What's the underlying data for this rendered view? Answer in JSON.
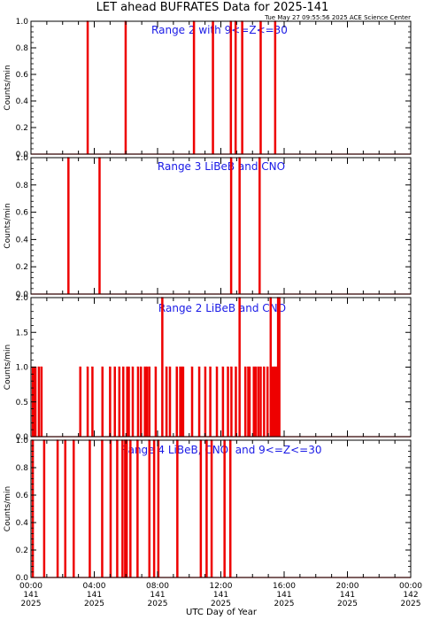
{
  "figure": {
    "title": "LET ahead BUFRATES Data for 2025-141",
    "timestamp": "Tue May 27 09:55:56 2025 ACE Science Center",
    "xlabel": "UTC Day of Year",
    "colors": {
      "line": "#ee0000",
      "panel_label": "#1a1ae6",
      "axes": "#000000",
      "background": "#ffffff"
    }
  },
  "chart_data": [
    {
      "type": "line",
      "title": "Range 2 with 9<=Z<=30",
      "ylabel": "Counts/min",
      "ylim": [
        0,
        1.0
      ],
      "yticks": [
        "0.0",
        "0.2",
        "0.4",
        "0.6",
        "0.8",
        "1.0"
      ],
      "xlim": [
        0,
        1440
      ],
      "x_unit": "minutes after 00:00 UTC, 2025-141",
      "series": [
        {
          "x": [
            213,
            357,
            616,
            688,
            756,
            774,
            799,
            869,
            924
          ],
          "values": [
            1,
            1,
            1,
            1,
            1,
            1,
            1,
            1,
            1
          ]
        }
      ]
    },
    {
      "type": "line",
      "title": "Range 3 LiBeB and CNO",
      "ylabel": "Counts/min",
      "ylim": [
        0,
        1.0
      ],
      "yticks": [
        "0.0",
        "0.2",
        "0.4",
        "0.6",
        "0.8",
        "1.0"
      ],
      "xlim": [
        0,
        1440
      ],
      "x_unit": "minutes after 00:00 UTC, 2025-141",
      "series": [
        {
          "x": [
            140,
            258,
            757,
            789,
            865
          ],
          "values": [
            1,
            1,
            1,
            1,
            1
          ]
        }
      ]
    },
    {
      "type": "line",
      "title": "Range 2 LiBeB and CNO",
      "ylabel": "Counts/min",
      "ylim": [
        0,
        2.0
      ],
      "yticks": [
        "0.0",
        "0.5",
        "1.0",
        "1.5",
        "2.0"
      ],
      "xlim": [
        0,
        1440
      ],
      "x_unit": "minutes after 00:00 UTC, 2025-141",
      "series": [
        {
          "x": [
            5,
            10,
            15,
            28,
            38,
            185,
            213,
            231,
            269,
            298,
            316,
            333,
            348,
            363,
            369,
            384,
            404,
            415,
            430,
            438,
            447,
            471,
            496,
            512,
            525,
            551,
            564,
            571,
            575,
            609,
            636,
            659,
            678,
            703,
            726,
            745,
            758,
            775,
            789,
            811,
            822,
            827,
            843,
            850,
            860,
            869,
            882,
            895,
            907,
            913,
            921,
            925,
            932,
            935,
            940
          ],
          "values": [
            1,
            1,
            1,
            1,
            1,
            1,
            1,
            1,
            1,
            1,
            1,
            1,
            1,
            1,
            1,
            1,
            1,
            1,
            1,
            1,
            1,
            1,
            2,
            1,
            1,
            1,
            1,
            1,
            1,
            1,
            1,
            1,
            1,
            1,
            1,
            1,
            1,
            1,
            2,
            1,
            1,
            1,
            1,
            1,
            1,
            1,
            1,
            1,
            2,
            1,
            1,
            1,
            1,
            2,
            2
          ]
        }
      ]
    },
    {
      "type": "line",
      "title": "Range 4 LiBeB, CNO, and 9<=Z<=30",
      "ylabel": "Counts/min",
      "ylim": [
        0,
        1.0
      ],
      "yticks": [
        "0.0",
        "0.2",
        "0.4",
        "0.6",
        "0.8",
        "1.0"
      ],
      "xticks": [
        {
          "time": "00:00",
          "doy": "141",
          "year": "2025"
        },
        {
          "time": "04:00",
          "doy": "141",
          "year": "2025"
        },
        {
          "time": "08:00",
          "doy": "141",
          "year": "2025"
        },
        {
          "time": "12:00",
          "doy": "141",
          "year": "2025"
        },
        {
          "time": "16:00",
          "doy": "141",
          "year": "2025"
        },
        {
          "time": "20:00",
          "doy": "141",
          "year": "2025"
        },
        {
          "time": "00:00",
          "doy": "142",
          "year": "2025"
        }
      ],
      "xlim": [
        0,
        1440
      ],
      "x_unit": "minutes after 00:00 UTC, 2025-141",
      "series": [
        {
          "x": [
            5,
            48,
            99,
            128,
            160,
            221,
            268,
            300,
            325,
            345,
            355,
            361,
            375,
            402,
            447,
            465,
            481,
            553,
            642,
            664,
            683,
            732,
            754
          ],
          "values": [
            1,
            1,
            1,
            1,
            1,
            1,
            1,
            1,
            1,
            1,
            1,
            1,
            1,
            1,
            1,
            1,
            1,
            1,
            1,
            1,
            1,
            1,
            1
          ]
        }
      ]
    }
  ]
}
